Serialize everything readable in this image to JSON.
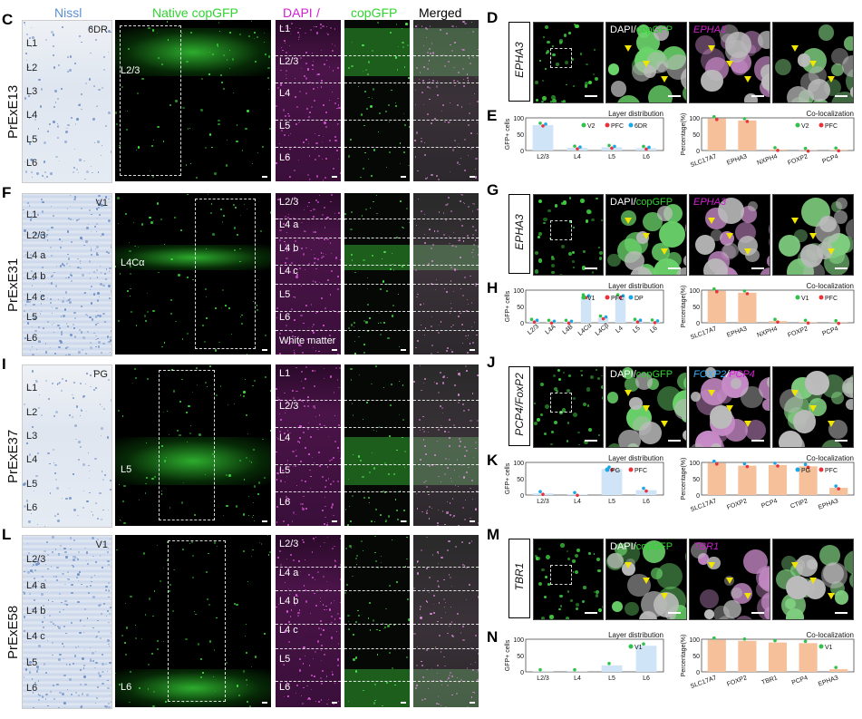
{
  "headers": {
    "nissl": "Nissl",
    "native": "Native copGFP",
    "dapi": "DAPI",
    "sep": "/",
    "gfp": "copGFP",
    "merged": "Merged"
  },
  "colors": {
    "nissl": "#5b8fd6",
    "green": "#2fd42f",
    "magenta": "#d020d0",
    "v2": "#2fc24a",
    "pfc": "#e8323a",
    "sixdr": "#1aa7e6",
    "bar_blue": "#cfe4f6",
    "bar_peach": "#f5c09a"
  },
  "rows": [
    {
      "letter": "C",
      "construct": "PrExE13",
      "area": "6DR",
      "layers": [
        "L1",
        "L2",
        "L3",
        "L4",
        "L5",
        "L6"
      ],
      "gfp_layer": "L2/3",
      "dapi_layers": [
        "L1",
        "L2/3",
        "L4",
        "L5",
        "L6"
      ]
    },
    {
      "letter": "F",
      "construct": "PrExE31",
      "area": "V1",
      "layers": [
        "L1",
        "L2/3",
        "L4 a",
        "L4 b",
        "L4 c",
        "L5",
        "L6"
      ],
      "gfp_layer": "L4Cα",
      "dapi_layers": [
        "L2/3",
        "L4 a",
        "L4 b",
        "L4 c",
        "L5",
        "L6",
        "White matter"
      ]
    },
    {
      "letter": "I",
      "construct": "PrExE37",
      "area": "PG",
      "layers": [
        "L1",
        "L2",
        "L3",
        "L4",
        "L5",
        "L6"
      ],
      "gfp_layer": "L5",
      "dapi_layers": [
        "L1",
        "L2/3",
        "L4",
        "L5",
        "L6"
      ]
    },
    {
      "letter": "L",
      "construct": "PrExE58",
      "area": "V1",
      "layers": [
        "L2/3",
        "L4 a",
        "L4 b",
        "L4 c",
        "L5",
        "L6"
      ],
      "gfp_layer": "L6",
      "dapi_layers": [
        "L2/3",
        "L4 a",
        "L4 b",
        "L4 c",
        "L5",
        "L6"
      ]
    }
  ],
  "micro_panels": [
    {
      "letter": "D",
      "gene": "EPHA3",
      "label1": "DAPI",
      "label2": "copGFP",
      "label3": "EPHA3"
    },
    {
      "letter": "G",
      "gene": "EPHA3",
      "label1": "DAPI",
      "label2": "copGFP",
      "label3": "EPHA3"
    },
    {
      "letter": "J",
      "gene": "PCP4/FoxP2",
      "label1": "DAPI",
      "label2": "copGFP",
      "label3": "FOXP2",
      "label4": "PCP4"
    },
    {
      "letter": "M",
      "gene": "TBR1",
      "label1": "DAPI",
      "label2": "copGFP",
      "label3": "TBR1"
    }
  ],
  "chart_data": [
    {
      "panel": "E",
      "type": "bar",
      "title": "Layer distribution",
      "ylabel": "GFP+ cells",
      "categories": [
        "L2/3",
        "L4",
        "L5",
        "L6"
      ],
      "values": [
        78,
        8,
        10,
        7
      ],
      "ylim": [
        0,
        100
      ],
      "legend": [
        "V2",
        "PFC",
        "6DR"
      ]
    },
    {
      "panel": "E",
      "type": "bar",
      "title": "Co-localization",
      "ylabel": "Percentage(%)",
      "categories": [
        "SLC17A7",
        "EPHA3",
        "NXPH4",
        "FOXP2",
        "PCP4"
      ],
      "values": [
        98,
        92,
        3,
        1,
        2
      ],
      "ylim": [
        0,
        100
      ],
      "legend": [
        "V2",
        "PFC"
      ]
    },
    {
      "panel": "H",
      "type": "bar",
      "title": "Layer distribution",
      "ylabel": "GFP+ cells",
      "categories": [
        "L2/3",
        "L4A",
        "L4B",
        "L4Cα",
        "L4Cβ",
        "L4",
        "L5",
        "L6"
      ],
      "values": [
        5,
        2,
        2,
        80,
        15,
        80,
        5,
        3
      ],
      "ylim": [
        0,
        100
      ],
      "legend": [
        "V1",
        "PFC",
        "DP"
      ]
    },
    {
      "panel": "H",
      "type": "bar",
      "title": "Co-localization",
      "ylabel": "Percentage(%)",
      "categories": [
        "SLC17A7",
        "EPHA3",
        "NXPH4",
        "FOXP2",
        "PCP4"
      ],
      "values": [
        98,
        92,
        5,
        2,
        1
      ],
      "ylim": [
        0,
        100
      ],
      "legend": [
        "V1",
        "PFC"
      ]
    },
    {
      "panel": "K",
      "type": "bar",
      "title": "Layer distribution",
      "ylabel": "GFP+ cells",
      "categories": [
        "L2/3",
        "L4",
        "L5",
        "L6"
      ],
      "values": [
        5,
        2,
        80,
        15
      ],
      "ylim": [
        0,
        100
      ],
      "legend": [
        "PG",
        "PFC"
      ]
    },
    {
      "panel": "K",
      "type": "bar",
      "title": "Co-localization",
      "ylabel": "Percentage(%)",
      "categories": [
        "SLC17A7",
        "FOXP2",
        "PCP4",
        "CTIP2",
        "EPHA3"
      ],
      "values": [
        98,
        90,
        92,
        88,
        22
      ],
      "ylim": [
        0,
        100
      ],
      "legend": [
        "PG",
        "PFC"
      ]
    },
    {
      "panel": "N",
      "type": "bar",
      "title": "Layer distribution",
      "ylabel": "GFP+ cells",
      "categories": [
        "L2/3",
        "L4",
        "L5",
        "L6"
      ],
      "values": [
        1,
        1,
        20,
        80
      ],
      "ylim": [
        0,
        100
      ],
      "legend": [
        "V1"
      ]
    },
    {
      "panel": "N",
      "type": "bar",
      "title": "Co-localization",
      "ylabel": "Percentage(%)",
      "categories": [
        "SLC17A7",
        "FOXP2",
        "TBR1",
        "PCP4",
        "EPHA3"
      ],
      "values": [
        98,
        95,
        90,
        88,
        8
      ],
      "ylim": [
        0,
        100
      ],
      "legend": [
        "V1"
      ]
    }
  ]
}
